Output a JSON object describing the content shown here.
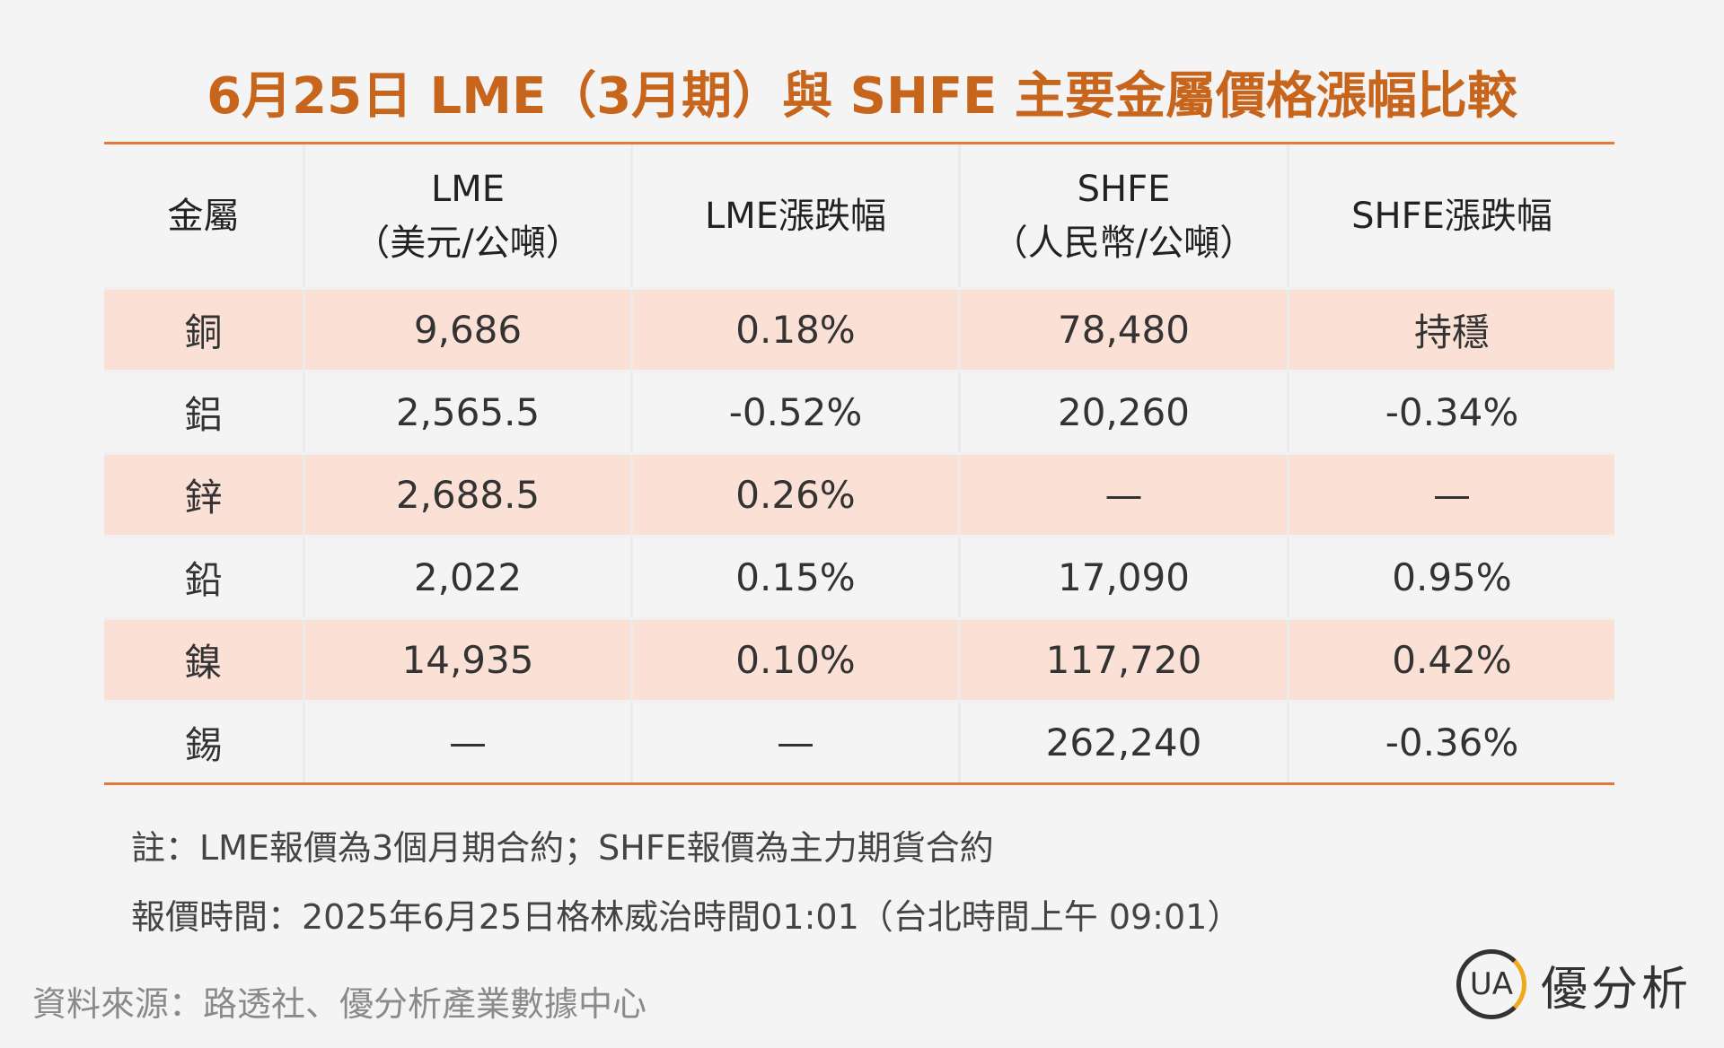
{
  "header": {
    "title": "6月25日 LME（3月期）與 SHFE 主要金屬價格漲幅比較"
  },
  "table": {
    "headers": [
      [
        "金屬"
      ],
      [
        "LME",
        "（美元/公噸）"
      ],
      [
        "LME漲跌幅"
      ],
      [
        "SHFE",
        "（人民幣/公噸）"
      ],
      [
        "SHFE漲跌幅"
      ]
    ],
    "rows": [
      [
        "銅",
        "9,686",
        "0.18%",
        "78,480",
        "持穩"
      ],
      [
        "鋁",
        "2,565.5",
        "-0.52%",
        "20,260",
        "-0.34%"
      ],
      [
        "鋅",
        "2,688.5",
        "0.26%",
        "—",
        "—"
      ],
      [
        "鉛",
        "2,022",
        "0.15%",
        "17,090",
        "0.95%"
      ],
      [
        "鎳",
        "14,935",
        "0.10%",
        "117,720",
        "0.42%"
      ],
      [
        "錫",
        "—",
        "—",
        "262,240",
        "-0.36%"
      ]
    ]
  },
  "notes": [
    "註：LME報價為3個月期合約；SHFE報價為主力期貨合約",
    "報價時間：2025年6月25日格林威治時間01:01（台北時間上午 09:01）"
  ],
  "source": "資料來源：路透社、優分析產業數據中心",
  "logo": {
    "mark": "UA",
    "text": "優分析"
  }
}
